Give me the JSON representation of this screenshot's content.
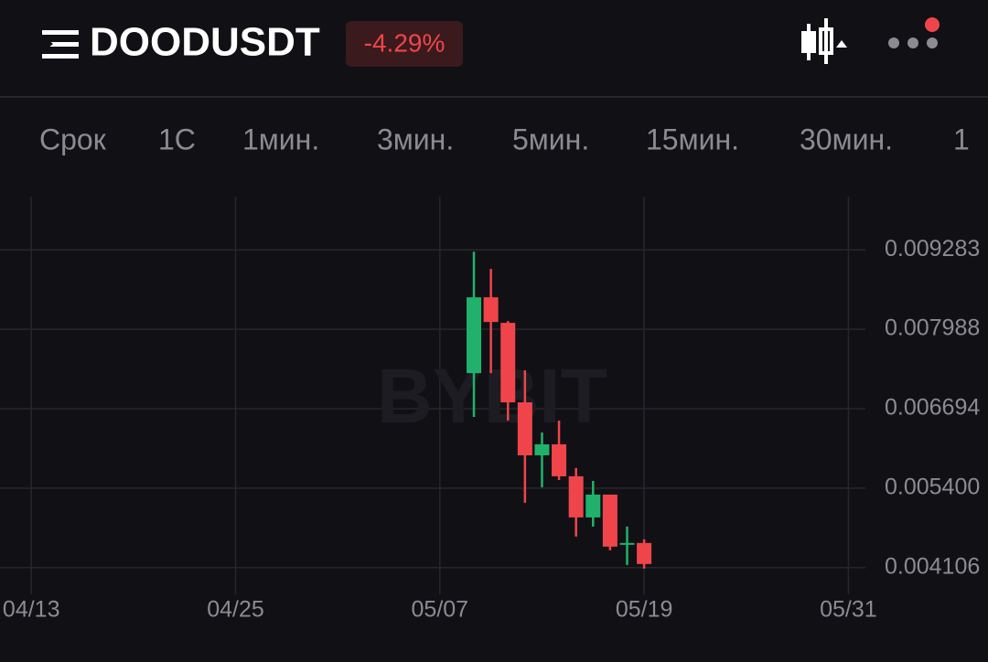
{
  "header": {
    "symbol": "DOODUSDT",
    "change": "-4.29%"
  },
  "timeframes": [
    "Срок",
    "1С",
    "1мин.",
    "3мин.",
    "5мин.",
    "15мин.",
    "30мин.",
    "1"
  ],
  "chart_data": {
    "type": "candlestick",
    "watermark": "BYBIT",
    "x": [
      "05/09",
      "05/10",
      "05/11",
      "05/12",
      "05/13",
      "05/14",
      "05/15",
      "05/16",
      "05/17",
      "05/18",
      "05/19"
    ],
    "open": [
      0.007274,
      0.008509,
      0.008093,
      0.006798,
      0.005935,
      0.006114,
      0.005593,
      0.004923,
      0.005295,
      0.004477,
      0.004507
    ],
    "high": [
      0.009253,
      0.008971,
      0.008122,
      0.007319,
      0.006307,
      0.0065,
      0.005727,
      0.005518,
      0.005295,
      0.004774,
      0.004566
    ],
    "low": [
      0.00656,
      0.007274,
      0.0065,
      0.005161,
      0.005414,
      0.005533,
      0.004611,
      0.004774,
      0.004387,
      0.004149,
      0.00409
    ],
    "close": [
      0.008509,
      0.008107,
      0.006798,
      0.005935,
      0.006114,
      0.005593,
      0.004923,
      0.005295,
      0.004447,
      0.004507,
      0.004164
    ],
    "up_color": "#20b26c",
    "down_color": "#ef454a",
    "xlim": [
      "04/11",
      "06/01"
    ],
    "xticks": [
      "04/13",
      "04/25",
      "05/07",
      "05/19",
      "05/31"
    ],
    "ylim": [
      0.00367,
      0.01015
    ],
    "yticks": [
      0.009283,
      0.007988,
      0.006694,
      {
        "value": 0.0054,
        "label": "0.005400"
      },
      0.004106
    ],
    "grid": true
  }
}
